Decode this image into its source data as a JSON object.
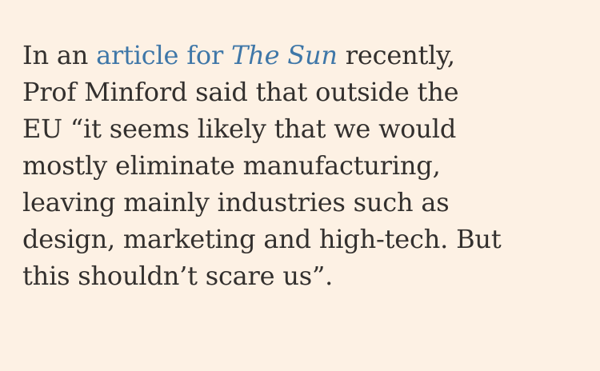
{
  "paragraph": {
    "line1_prefix": "In an ",
    "link_text": "article for ",
    "link_publication": "The Sun",
    "line1_suffix": " recently,",
    "line2": "Prof Minford said that outside the",
    "line3": "EU “it seems likely that we would",
    "line4": "mostly eliminate manufacturing,",
    "line5": "leaving mainly industries such as",
    "line6": "design, marketing and high-tech. But",
    "line7": "this shouldn’t scare us”."
  },
  "colors": {
    "background": "#fdf1e4",
    "text": "#33302e",
    "link": "#3f77a8"
  }
}
